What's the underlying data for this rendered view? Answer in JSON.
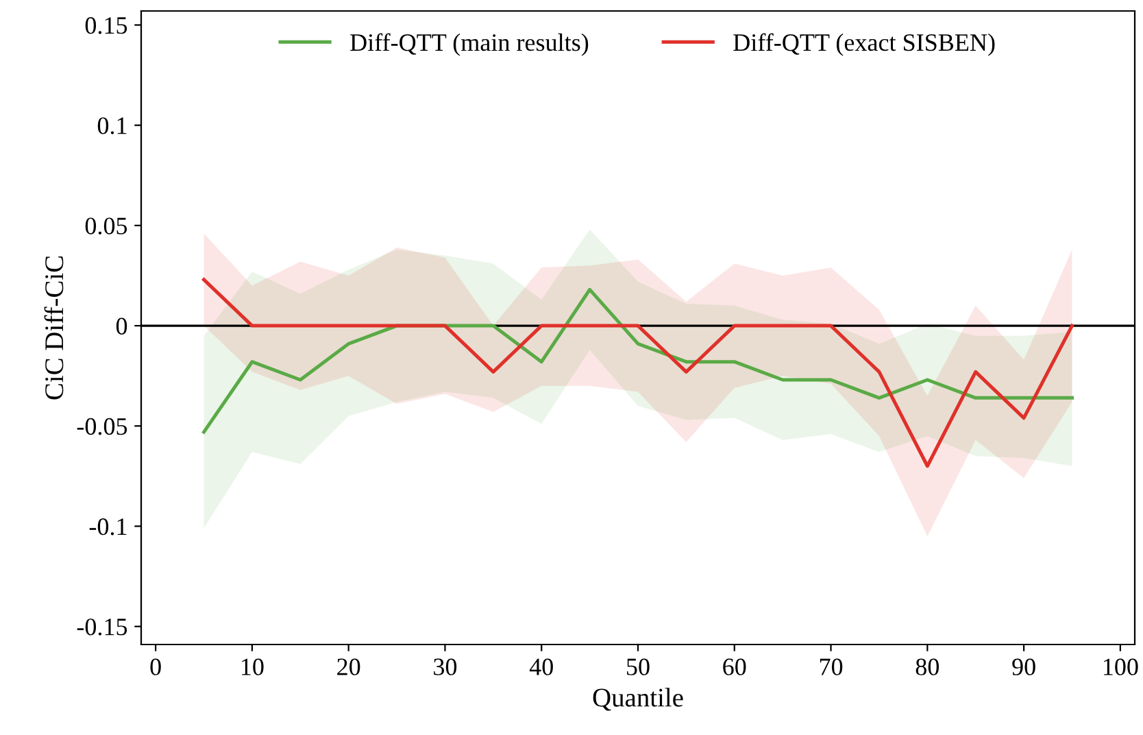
{
  "chart_data": {
    "type": "line",
    "xlabel": "Quantile",
    "ylabel": "CiC Diff-CiC",
    "x": [
      5,
      10,
      15,
      20,
      25,
      30,
      35,
      40,
      45,
      50,
      55,
      60,
      65,
      70,
      75,
      80,
      85,
      90,
      95
    ],
    "series": [
      {
        "name": "Diff-QTT (main results)",
        "color": "#5aaa46",
        "values": [
          -0.053,
          -0.018,
          -0.027,
          -0.009,
          0,
          0,
          0,
          -0.018,
          0.018,
          -0.009,
          -0.018,
          -0.018,
          -0.027,
          -0.027,
          -0.036,
          -0.027,
          -0.036,
          -0.036,
          -0.036
        ],
        "lower": [
          -0.101,
          -0.063,
          -0.069,
          -0.045,
          -0.038,
          -0.033,
          -0.036,
          -0.049,
          -0.012,
          -0.04,
          -0.047,
          -0.046,
          -0.057,
          -0.054,
          -0.063,
          -0.055,
          -0.065,
          -0.066,
          -0.07
        ],
        "upper": [
          -0.005,
          0.027,
          0.016,
          0.028,
          0.038,
          0.035,
          0.031,
          0.013,
          0.048,
          0.022,
          0.011,
          0.01,
          0.003,
          0.001,
          -0.009,
          0.001,
          -0.005,
          -0.005,
          -0.003
        ]
      },
      {
        "name": "Diff-QTT (exact SISBEN)",
        "color": "#e0302a",
        "values": [
          0.023,
          0,
          0,
          0,
          0,
          0,
          -0.023,
          0,
          0,
          0,
          -0.023,
          0,
          0,
          0,
          -0.023,
          -0.07,
          -0.023,
          -0.046,
          0
        ],
        "lower": [
          0.0,
          -0.023,
          -0.032,
          -0.025,
          -0.039,
          -0.034,
          -0.043,
          -0.03,
          -0.03,
          -0.033,
          -0.058,
          -0.031,
          -0.025,
          -0.029,
          -0.055,
          -0.105,
          -0.057,
          -0.076,
          -0.038
        ],
        "upper": [
          0.046,
          0.02,
          0.032,
          0.025,
          0.039,
          0.034,
          0.0,
          0.029,
          0.03,
          0.033,
          0.012,
          0.031,
          0.025,
          0.029,
          0.008,
          -0.035,
          0.01,
          -0.017,
          0.038
        ]
      }
    ],
    "xlim": [
      -1.5,
      101.5
    ],
    "ylim": [
      -0.159,
      0.157
    ],
    "xticks": [
      0,
      10,
      20,
      30,
      40,
      50,
      60,
      70,
      80,
      90,
      100
    ],
    "yticks": [
      {
        "value": -0.15,
        "label": "-0.15"
      },
      {
        "value": -0.1,
        "label": "-0.1"
      },
      {
        "value": -0.05,
        "label": "-0.05"
      },
      0,
      {
        "value": 0.05,
        "label": "0.05"
      },
      {
        "value": 0.1,
        "label": "0.1"
      },
      {
        "value": 0.15,
        "label": "0.15"
      }
    ],
    "ref_lines": [
      {
        "axis": "y",
        "value": 0,
        "color": "#000000"
      }
    ],
    "legend": "top",
    "grid": false
  }
}
